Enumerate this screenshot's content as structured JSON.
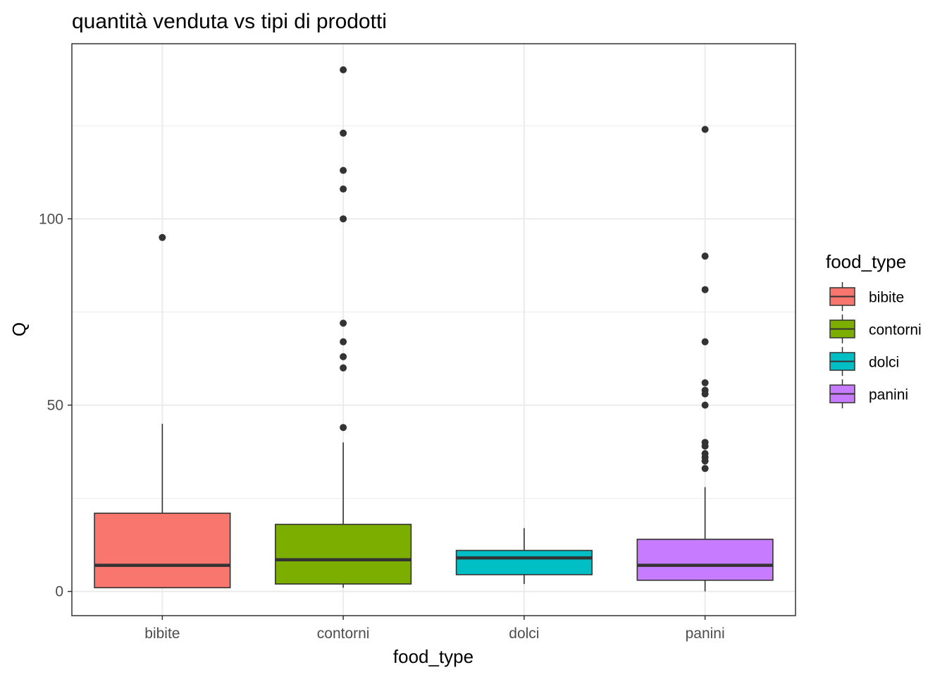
{
  "chart_data": {
    "type": "boxplot",
    "title": "quantità venduta vs tipi di prodotti",
    "xlabel": "food_type",
    "ylabel": "Q",
    "ylim": [
      -6.5,
      147
    ],
    "yticks": [
      0,
      50,
      100
    ],
    "grid": true,
    "legend": {
      "title": "food_type",
      "position": "right"
    },
    "categories": [
      "bibite",
      "contorni",
      "dolci",
      "panini"
    ],
    "series": [
      {
        "name": "bibite",
        "color": "#F8766D",
        "min": 1,
        "q1": 1,
        "median": 7,
        "q3": 21,
        "max": 45,
        "outliers": [
          95
        ]
      },
      {
        "name": "contorni",
        "color": "#7CAE00",
        "min": 1,
        "q1": 2,
        "median": 8.5,
        "q3": 18,
        "max": 40,
        "outliers": [
          140,
          123,
          113,
          108,
          100,
          72,
          67,
          63,
          60,
          44
        ]
      },
      {
        "name": "dolci",
        "color": "#00BFC4",
        "min": 2,
        "q1": 4.5,
        "median": 9,
        "q3": 11,
        "max": 17,
        "outliers": []
      },
      {
        "name": "panini",
        "color": "#C77CFF",
        "min": 0,
        "q1": 3,
        "median": 7,
        "q3": 14,
        "max": 28,
        "outliers": [
          124,
          90,
          81,
          67,
          56,
          54,
          53,
          50,
          40,
          39,
          37,
          36,
          35,
          33
        ]
      }
    ]
  }
}
